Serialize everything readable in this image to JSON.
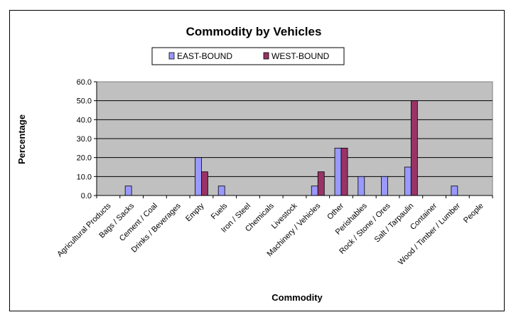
{
  "chart_data": {
    "type": "bar",
    "title": "Commodity by Vehicles",
    "xlabel": "Commodity",
    "ylabel": "Percentage",
    "ylim": [
      0,
      60
    ],
    "yticks": [
      "0.0",
      "10.0",
      "20.0",
      "30.0",
      "40.0",
      "50.0",
      "60.0"
    ],
    "grid": true,
    "legend_position": "top-center",
    "categories": [
      "Agricultural Products",
      "Bags / Sacks",
      "Cement / Coal",
      "Drinks / Beverages",
      "Empty",
      "Fuels",
      "Iron / Steel",
      "Chemicals",
      "Livestock",
      "Machinery / Vehicles",
      "Other",
      "Perishables",
      "Rock / Stone / Ores",
      "Salt / Tarpaulin",
      "Container",
      "Wood / Timber / Lumber",
      "People"
    ],
    "series": [
      {
        "name": "EAST-BOUND",
        "color": "#9999ff",
        "values": [
          0,
          5,
          0,
          0,
          20,
          5,
          0,
          0,
          0,
          5,
          25,
          10,
          10,
          15,
          0,
          5,
          0
        ]
      },
      {
        "name": "WEST-BOUND",
        "color": "#993366",
        "values": [
          0,
          0,
          0,
          0,
          12.5,
          0,
          0,
          0,
          0,
          12.5,
          25,
          0,
          0,
          50,
          0,
          0,
          0
        ]
      }
    ],
    "plot_background": "#c0c0c0"
  }
}
